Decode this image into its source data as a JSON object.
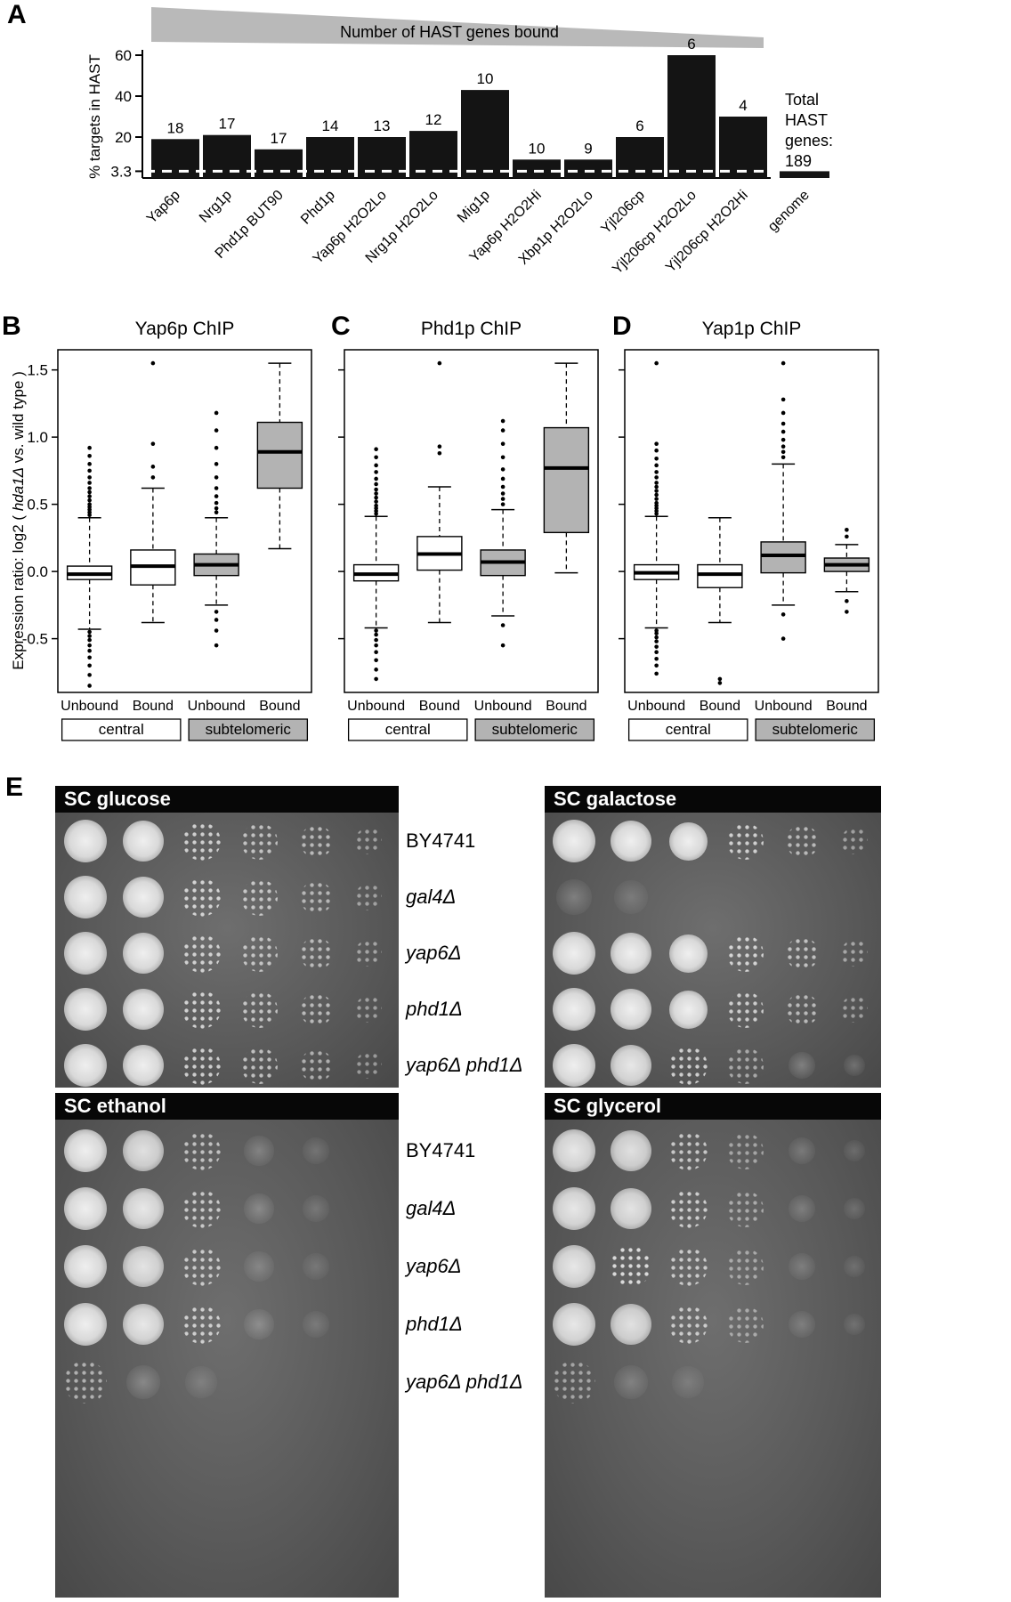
{
  "labels": {
    "a": "A",
    "b": "B",
    "c": "C",
    "d": "D",
    "e": "E"
  },
  "chart_data": [
    {
      "id": "panel_a",
      "type": "bar",
      "wedge_label": "Number of HAST genes bound",
      "ylabel": "% targets in HAST",
      "yticks": [
        3.3,
        20,
        40,
        60
      ],
      "ylim": [
        0,
        62
      ],
      "dashed_threshold": 3.3,
      "categories": [
        "Yap6p",
        "Nrg1p",
        "Phd1p BUT90",
        "Phd1p",
        "Yap6p H2O2Lo",
        "Nrg1p H2O2Lo",
        "Mig1p",
        "Yap6p H2O2Hi",
        "Xbp1p H2O2Lo",
        "Yjl206cp",
        "Yjl206cp H2O2Lo",
        "Yjl206cp H2O2Hi"
      ],
      "values": [
        19,
        21,
        14,
        20,
        20,
        23,
        43,
        9,
        9,
        20,
        60,
        30
      ],
      "counts": [
        18,
        17,
        17,
        14,
        13,
        12,
        10,
        10,
        9,
        6,
        6,
        4
      ],
      "genome": {
        "label": "genome",
        "value": 3.3
      },
      "annotation_lines": [
        "Total",
        "HAST",
        "genes:",
        "189"
      ]
    },
    {
      "id": "panel_b",
      "type": "boxplot",
      "title": "Yap6p ChIP",
      "ylabel_pre": "Expression ratio: log2 ( ",
      "ylabel_italic": "hda1Δ",
      "ylabel_post": "  vs. wild type )",
      "yticks": [
        -0.5,
        0.0,
        0.5,
        1.0,
        1.5
      ],
      "ylim": [
        -0.9,
        1.65
      ],
      "xlabels": [
        "Unbound",
        "Bound",
        "Unbound",
        "Bound"
      ],
      "groups": [
        {
          "label": "central",
          "fill": "#ffffff"
        },
        {
          "label": "subtelomeric",
          "fill": "#b3b3b3"
        }
      ],
      "boxes": [
        {
          "label": "Unbound",
          "group": "central",
          "fill": "#ffffff",
          "lo": -0.43,
          "q1": -0.06,
          "med": -0.02,
          "q3": 0.04,
          "hi": 0.4,
          "out_hi": [
            0.42,
            0.44,
            0.46,
            0.48,
            0.5,
            0.53,
            0.56,
            0.59,
            0.62,
            0.66,
            0.7,
            0.75,
            0.8,
            0.86,
            0.92
          ],
          "out_lo": [
            -0.45,
            -0.48,
            -0.51,
            -0.55,
            -0.59,
            -0.64,
            -0.7,
            -0.77,
            -0.85
          ]
        },
        {
          "label": "Bound",
          "group": "central",
          "fill": "#ffffff",
          "lo": -0.38,
          "q1": -0.1,
          "med": 0.04,
          "q3": 0.16,
          "hi": 0.62,
          "out_hi": [
            0.7,
            0.78,
            0.95,
            1.55
          ],
          "out_lo": []
        },
        {
          "label": "Unbound",
          "group": "subtelomeric",
          "fill": "#b3b3b3",
          "lo": -0.25,
          "q1": -0.03,
          "med": 0.05,
          "q3": 0.13,
          "hi": 0.4,
          "out_hi": [
            0.44,
            0.47,
            0.51,
            0.56,
            0.62,
            0.7,
            0.8,
            0.92,
            1.05,
            1.18
          ],
          "out_lo": [
            -0.3,
            -0.36,
            -0.44,
            -0.55
          ]
        },
        {
          "label": "Bound",
          "group": "subtelomeric",
          "fill": "#b3b3b3",
          "lo": 0.17,
          "q1": 0.62,
          "med": 0.89,
          "q3": 1.11,
          "hi": 1.55,
          "out_hi": [],
          "out_lo": []
        }
      ]
    },
    {
      "id": "panel_c",
      "type": "boxplot",
      "title": "Phd1p ChIP",
      "yticks": [
        -0.5,
        0.0,
        0.5,
        1.0,
        1.5
      ],
      "ylim": [
        -0.9,
        1.65
      ],
      "xlabels": [
        "Unbound",
        "Bound",
        "Unbound",
        "Bound"
      ],
      "groups": [
        {
          "label": "central",
          "fill": "#ffffff"
        },
        {
          "label": "subtelomeric",
          "fill": "#b3b3b3"
        }
      ],
      "boxes": [
        {
          "label": "Unbound",
          "group": "central",
          "fill": "#ffffff",
          "lo": -0.42,
          "q1": -0.07,
          "med": -0.02,
          "q3": 0.05,
          "hi": 0.41,
          "out_hi": [
            0.43,
            0.45,
            0.47,
            0.49,
            0.52,
            0.55,
            0.58,
            0.61,
            0.65,
            0.69,
            0.74,
            0.79,
            0.85,
            0.91
          ],
          "out_lo": [
            -0.44,
            -0.47,
            -0.51,
            -0.55,
            -0.6,
            -0.66,
            -0.73,
            -0.8
          ]
        },
        {
          "label": "Bound",
          "group": "central",
          "fill": "#ffffff",
          "lo": -0.38,
          "q1": 0.01,
          "med": 0.13,
          "q3": 0.26,
          "hi": 0.63,
          "out_hi": [
            0.88,
            0.93,
            1.55
          ],
          "out_lo": []
        },
        {
          "label": "Unbound",
          "group": "subtelomeric",
          "fill": "#b3b3b3",
          "lo": -0.33,
          "q1": -0.03,
          "med": 0.07,
          "q3": 0.16,
          "hi": 0.46,
          "out_hi": [
            0.5,
            0.54,
            0.58,
            0.63,
            0.69,
            0.76,
            0.85,
            0.95,
            1.05,
            1.12
          ],
          "out_lo": [
            -0.4,
            -0.55
          ]
        },
        {
          "label": "Bound",
          "group": "subtelomeric",
          "fill": "#b3b3b3",
          "lo": -0.01,
          "q1": 0.29,
          "med": 0.77,
          "q3": 1.07,
          "hi": 1.55,
          "out_hi": [],
          "out_lo": []
        }
      ]
    },
    {
      "id": "panel_d",
      "type": "boxplot",
      "title": "Yap1p ChIP",
      "yticks": [
        -0.5,
        0.0,
        0.5,
        1.0,
        1.5
      ],
      "ylim": [
        -0.9,
        1.65
      ],
      "xlabels": [
        "Unbound",
        "Bound",
        "Unbound",
        "Bound"
      ],
      "groups": [
        {
          "label": "central",
          "fill": "#ffffff"
        },
        {
          "label": "subtelomeric",
          "fill": "#b3b3b3"
        }
      ],
      "boxes": [
        {
          "label": "Unbound",
          "group": "central",
          "fill": "#ffffff",
          "lo": -0.42,
          "q1": -0.06,
          "med": -0.01,
          "q3": 0.05,
          "hi": 0.41,
          "out_hi": [
            0.43,
            0.45,
            0.47,
            0.49,
            0.51,
            0.54,
            0.57,
            0.6,
            0.63,
            0.66,
            0.7,
            0.74,
            0.79,
            0.84,
            0.9,
            0.95,
            1.55
          ],
          "out_lo": [
            -0.44,
            -0.46,
            -0.49,
            -0.52,
            -0.56,
            -0.6,
            -0.65,
            -0.7,
            -0.76
          ]
        },
        {
          "label": "Bound",
          "group": "central",
          "fill": "#ffffff",
          "lo": -0.38,
          "q1": -0.12,
          "med": -0.02,
          "q3": 0.05,
          "hi": 0.4,
          "out_hi": [],
          "out_lo": [
            -0.8,
            -0.83
          ]
        },
        {
          "label": "Unbound",
          "group": "subtelomeric",
          "fill": "#b3b3b3",
          "lo": -0.25,
          "q1": -0.01,
          "med": 0.12,
          "q3": 0.22,
          "hi": 0.8,
          "out_hi": [
            0.85,
            0.89,
            0.93,
            0.98,
            1.04,
            1.1,
            1.18,
            1.28,
            1.55
          ],
          "out_lo": [
            -0.32,
            -0.5
          ]
        },
        {
          "label": "Bound",
          "group": "subtelomeric",
          "fill": "#b3b3b3",
          "lo": -0.15,
          "q1": 0.0,
          "med": 0.05,
          "q3": 0.1,
          "hi": 0.2,
          "out_hi": [
            0.26,
            0.31
          ],
          "out_lo": [
            -0.22,
            -0.3
          ]
        }
      ]
    }
  ],
  "panel_e": {
    "strains": [
      {
        "text": "BY4741",
        "italic": false
      },
      {
        "text": "gal4Δ",
        "italic": true
      },
      {
        "text": "yap6Δ",
        "italic": true
      },
      {
        "text": "phd1Δ",
        "italic": true
      },
      {
        "text": "yap6Δ phd1Δ",
        "italic": true
      }
    ],
    "plates": [
      {
        "title": "SC glucose",
        "growth": [
          [
            0.95,
            0.9,
            0.6,
            0.5,
            0.45,
            0.3
          ],
          [
            0.95,
            0.9,
            0.62,
            0.52,
            0.42,
            0.3
          ],
          [
            0.95,
            0.9,
            0.6,
            0.5,
            0.45,
            0.32
          ],
          [
            0.95,
            0.9,
            0.62,
            0.52,
            0.45,
            0.3
          ],
          [
            0.9,
            0.85,
            0.6,
            0.5,
            0.4,
            0.28
          ]
        ]
      },
      {
        "title": "SC galactose",
        "growth": [
          [
            0.95,
            0.9,
            0.85,
            0.6,
            0.45,
            0.3
          ],
          [
            0.18,
            0.08,
            0,
            0,
            0,
            0
          ],
          [
            0.95,
            0.9,
            0.85,
            0.62,
            0.5,
            0.33
          ],
          [
            0.95,
            0.9,
            0.8,
            0.58,
            0.45,
            0.3
          ],
          [
            0.85,
            0.75,
            0.6,
            0.35,
            0.22,
            0.12
          ]
        ]
      },
      {
        "title": "SC ethanol",
        "growth": [
          [
            0.8,
            0.7,
            0.5,
            0.18,
            0.06,
            0
          ],
          [
            0.82,
            0.75,
            0.55,
            0.22,
            0.07,
            0
          ],
          [
            0.8,
            0.72,
            0.55,
            0.15,
            0.05,
            0
          ],
          [
            0.82,
            0.75,
            0.58,
            0.22,
            0.07,
            0
          ],
          [
            0.4,
            0.22,
            0.08,
            0,
            0,
            0
          ]
        ]
      },
      {
        "title": "SC glycerol",
        "growth": [
          [
            0.75,
            0.7,
            0.55,
            0.3,
            0.12,
            0.04
          ],
          [
            0.75,
            0.72,
            0.58,
            0.33,
            0.14,
            0.05
          ],
          [
            0.75,
            0.68,
            0.55,
            0.3,
            0.12,
            0.04
          ],
          [
            0.75,
            0.7,
            0.55,
            0.3,
            0.12,
            0.05
          ],
          [
            0.32,
            0.15,
            0.05,
            0,
            0,
            0
          ]
        ]
      }
    ]
  }
}
